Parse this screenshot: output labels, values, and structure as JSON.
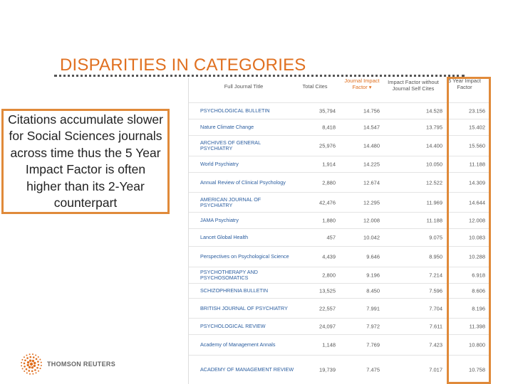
{
  "slide": {
    "title": "DISPARITIES IN CATEGORIES",
    "callout": "Citations accumulate slower for Social Sciences journals across time thus the 5 Year Impact Factor is often higher than its 2-Year counterpart"
  },
  "table": {
    "headers": {
      "journal": "Full Journal Title",
      "total_cites": "Total Cites",
      "jif": "Journal Impact Factor ▾",
      "jif_without_self": "Impact Factor without Journal Self Cites",
      "five_year": "5 Year Impact Factor"
    },
    "rows": [
      {
        "journal": "PSYCHOLOGICAL BULLETIN",
        "total_cites": "35,794",
        "jif": "14.756",
        "jif_without_self": "14.528",
        "five_year": "23.156"
      },
      {
        "journal": "Nature Climate Change",
        "total_cites": "8,418",
        "jif": "14.547",
        "jif_without_self": "13.795",
        "five_year": "15.402"
      },
      {
        "journal": "ARCHIVES OF GENERAL PSYCHIATRY",
        "total_cites": "25,976",
        "jif": "14.480",
        "jif_without_self": "14.400",
        "five_year": "15.560"
      },
      {
        "journal": "World Psychiatry",
        "total_cites": "1,914",
        "jif": "14.225",
        "jif_without_self": "10.050",
        "five_year": "11.188"
      },
      {
        "journal": "Annual Review of Clinical Psychology",
        "total_cites": "2,880",
        "jif": "12.674",
        "jif_without_self": "12.522",
        "five_year": "14.309"
      },
      {
        "journal": "AMERICAN JOURNAL OF PSYCHIATRY",
        "total_cites": "42,476",
        "jif": "12.295",
        "jif_without_self": "11.969",
        "five_year": "14.644"
      },
      {
        "journal": "JAMA Psychiatry",
        "total_cites": "1,880",
        "jif": "12.008",
        "jif_without_self": "11.188",
        "five_year": "12.008"
      },
      {
        "journal": "Lancet Global Health",
        "total_cites": "457",
        "jif": "10.042",
        "jif_without_self": "9.075",
        "five_year": "10.083"
      },
      {
        "journal": "Perspectives on Psychological Science",
        "total_cites": "4,439",
        "jif": "9.646",
        "jif_without_self": "8.950",
        "five_year": "10.288"
      },
      {
        "journal": "PSYCHOTHERAPY AND PSYCHOSOMATICS",
        "total_cites": "2,800",
        "jif": "9.196",
        "jif_without_self": "7.214",
        "five_year": "6.918"
      },
      {
        "journal": "SCHIZOPHRENIA BULLETIN",
        "total_cites": "13,525",
        "jif": "8.450",
        "jif_without_self": "7.596",
        "five_year": "8.606"
      },
      {
        "journal": "BRITISH JOURNAL OF PSYCHIATRY",
        "total_cites": "22,557",
        "jif": "7.991",
        "jif_without_self": "7.704",
        "five_year": "8.196"
      },
      {
        "journal": "PSYCHOLOGICAL REVIEW",
        "total_cites": "24,097",
        "jif": "7.972",
        "jif_without_self": "7.611",
        "five_year": "11.398"
      },
      {
        "journal": "Academy of Management Annals",
        "total_cites": "1,148",
        "jif": "7.769",
        "jif_without_self": "7.423",
        "five_year": "10.800"
      },
      {
        "journal": "ACADEMY OF MANAGEMENT REVIEW",
        "total_cites": "19,739",
        "jif": "7.475",
        "jif_without_self": "7.017",
        "five_year": "10.758"
      }
    ]
  },
  "logo": {
    "name": "THOMSON REUTERS",
    "icon": "thomson-reuters-logo-icon"
  },
  "colors": {
    "accent": "#e07020",
    "highlight_border": "#e08a3a",
    "link": "#2a5d9f"
  }
}
